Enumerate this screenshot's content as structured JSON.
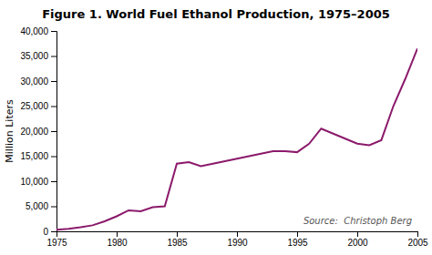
{
  "chart_data": {
    "type": "line",
    "title": "Figure 1. World Fuel Ethanol Production, 1975–2005",
    "ylabel": "Million Liters",
    "annotation": "Source:  Christoph Berg",
    "color": "#8B1A6B",
    "grid": false,
    "xlim": [
      1975,
      2005
    ],
    "ylim": [
      0,
      40000
    ],
    "xticks": [
      1975,
      1980,
      1985,
      1990,
      1995,
      2000,
      2005
    ],
    "yticks": [
      0,
      {
        "value": 5000,
        "label": "5,000"
      },
      {
        "value": 10000,
        "label": "10,000"
      },
      {
        "value": 15000,
        "label": "15,000"
      },
      {
        "value": 20000,
        "label": "20,000"
      },
      {
        "value": 25000,
        "label": "25,000"
      },
      {
        "value": 30000,
        "label": "30,000"
      },
      {
        "value": 35000,
        "label": "35,000"
      },
      {
        "value": 40000,
        "label": "40,000"
      }
    ],
    "x": [
      1975,
      1976,
      1977,
      1978,
      1979,
      1980,
      1981,
      1982,
      1983,
      1984,
      1985,
      1986,
      1987,
      1988,
      1989,
      1990,
      1991,
      1992,
      1993,
      1994,
      1995,
      1996,
      1997,
      1998,
      1999,
      2000,
      2001,
      2002,
      2003,
      2004,
      2005
    ],
    "values": [
      300,
      500,
      800,
      1200,
      2000,
      3000,
      4200,
      4000,
      4800,
      5000,
      13500,
      13800,
      13000,
      13500,
      14000,
      14500,
      15000,
      15500,
      16000,
      16000,
      15800,
      17500,
      20500,
      19500,
      18500,
      17500,
      17200,
      18200,
      25000,
      30500,
      36500
    ]
  }
}
